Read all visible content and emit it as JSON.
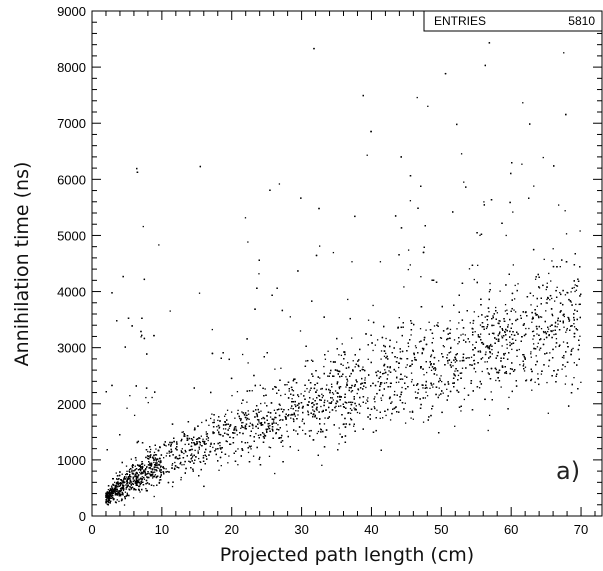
{
  "chart_data": {
    "type": "scatter",
    "xlabel": "Projected path length (cm)",
    "ylabel": "Annihilation time (ns)",
    "xlim": [
      0,
      73
    ],
    "ylim": [
      0,
      9000
    ],
    "xticks": [
      0,
      10,
      20,
      30,
      40,
      50,
      60,
      70
    ],
    "yticks": [
      0,
      1000,
      2000,
      3000,
      4000,
      5000,
      6000,
      7000,
      8000,
      9000
    ],
    "x_minor_step": 2,
    "y_minor_step": 200,
    "stats_box": {
      "label": "ENTRIES",
      "value": "5810"
    },
    "panel_label": "a)",
    "grid": false,
    "point_color": "#000000",
    "entries": 5810,
    "trend": [
      {
        "x": 2,
        "y_center": 300,
        "y_spread": 90
      },
      {
        "x": 5,
        "y_center": 560,
        "y_spread": 180
      },
      {
        "x": 10,
        "y_center": 880,
        "y_spread": 260
      },
      {
        "x": 15,
        "y_center": 1150,
        "y_spread": 320
      },
      {
        "x": 20,
        "y_center": 1380,
        "y_spread": 380
      },
      {
        "x": 25,
        "y_center": 1600,
        "y_spread": 430
      },
      {
        "x": 30,
        "y_center": 1820,
        "y_spread": 480
      },
      {
        "x": 35,
        "y_center": 2050,
        "y_spread": 520
      },
      {
        "x": 40,
        "y_center": 2250,
        "y_spread": 570
      },
      {
        "x": 45,
        "y_center": 2450,
        "y_spread": 610
      },
      {
        "x": 50,
        "y_center": 2620,
        "y_spread": 650
      },
      {
        "x": 55,
        "y_center": 2800,
        "y_spread": 690
      },
      {
        "x": 60,
        "y_center": 3000,
        "y_spread": 730
      },
      {
        "x": 65,
        "y_center": 3150,
        "y_spread": 760
      },
      {
        "x": 70,
        "y_center": 3300,
        "y_spread": 800
      }
    ],
    "outlier_fraction": 0.06,
    "x_range_of_points": [
      2,
      70
    ]
  }
}
